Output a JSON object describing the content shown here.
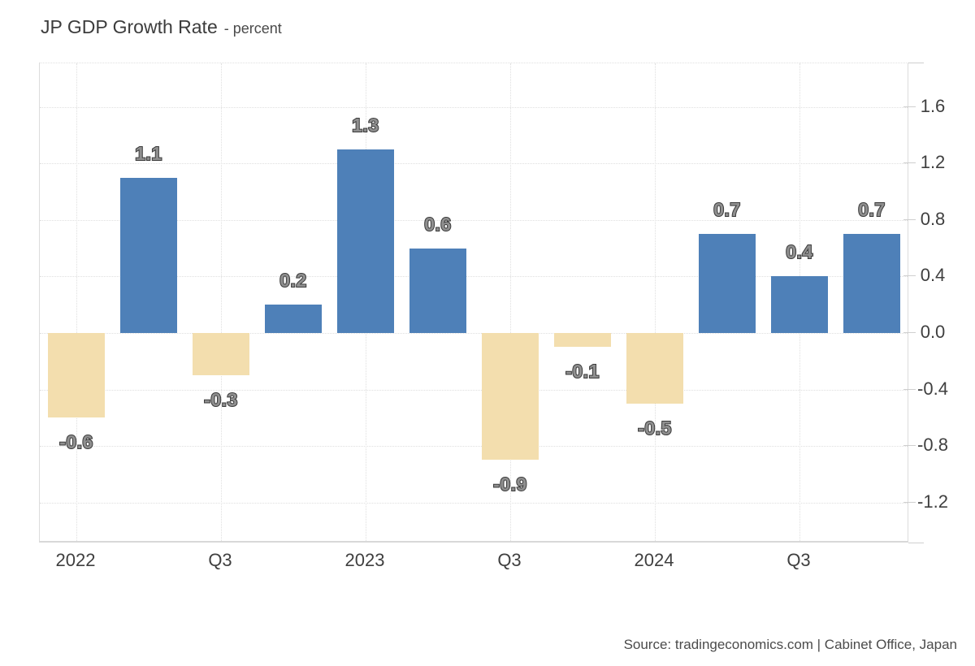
{
  "header": {
    "title": "JP GDP Growth Rate",
    "subtitle": "- percent"
  },
  "footer": {
    "source": "Source: tradingeconomics.com | Cabinet Office, Japan"
  },
  "colors": {
    "positive_bar": "#4e80b8",
    "negative_bar": "#f3deae",
    "grid": "#dfdfdf",
    "value_label_fill": "#8f8f8f",
    "value_label_stroke": "#3a3a3a",
    "axis_text": "#3f3f3f"
  },
  "chart_data": {
    "type": "bar",
    "title": "JP GDP Growth Rate",
    "ylabel": "percent",
    "values": [
      -0.6,
      1.1,
      -0.3,
      0.2,
      1.3,
      0.6,
      -0.9,
      -0.1,
      -0.5,
      0.7,
      0.4,
      0.7
    ],
    "bar_labels": [
      "-0.6",
      "1.1",
      "-0.3",
      "0.2",
      "1.3",
      "0.6",
      "-0.9",
      "-0.1",
      "-0.5",
      "0.7",
      "0.4",
      "0.7"
    ],
    "xtick_labels": [
      "2022",
      "Q3",
      "2023",
      "Q3",
      "2024",
      "Q3"
    ],
    "xtick_bar_indices": [
      0,
      2,
      4,
      6,
      8,
      10
    ],
    "yticks": [
      1.6,
      1.2,
      0.8,
      0.4,
      0.0,
      -0.4,
      -0.8,
      -1.2
    ],
    "ytick_labels": [
      "1.6",
      "1.2",
      "0.8",
      "0.4",
      "0.0",
      "-0.4",
      "-0.8",
      "-1.2"
    ],
    "ylim": [
      -1.49,
      1.91
    ],
    "grid": "dotted",
    "legend": "none"
  }
}
